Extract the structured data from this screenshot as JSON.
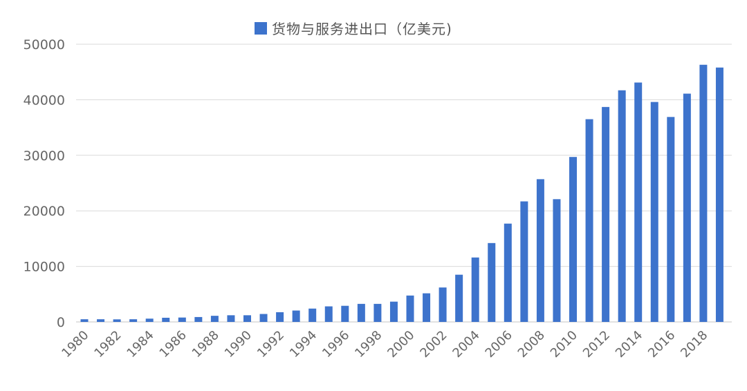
{
  "colors": {
    "bar": "#3D73CC",
    "grid": "#D9D9D9",
    "text": "#666666"
  },
  "chart_data": {
    "type": "bar",
    "title": "",
    "legend": [
      "货物与服务进出口（亿美元)"
    ],
    "legend_label": "货物与服务进出口（亿美元)",
    "legend_position": "top",
    "xlabel": "",
    "ylabel": "",
    "ylim": [
      0,
      50000
    ],
    "yticks": [
      "0",
      "10000",
      "20000",
      "30000",
      "40000",
      "50000"
    ],
    "grid": true,
    "categories": [
      "1980",
      "1981",
      "1982",
      "1983",
      "1984",
      "1985",
      "1986",
      "1987",
      "1988",
      "1989",
      "1990",
      "1991",
      "1992",
      "1993",
      "1994",
      "1995",
      "1996",
      "1997",
      "1998",
      "1999",
      "2000",
      "2001",
      "2002",
      "2003",
      "2004",
      "2005",
      "2006",
      "2007",
      "2008",
      "2009",
      "2010",
      "2011",
      "2012",
      "2013",
      "2014",
      "2015",
      "2016",
      "2017",
      "2018",
      "2019"
    ],
    "xtick_labels": [
      "1980",
      "1982",
      "1984",
      "1986",
      "1988",
      "1990",
      "1992",
      "1994",
      "1996",
      "1998",
      "2000",
      "2002",
      "2004",
      "2006",
      "2008",
      "2010",
      "2012",
      "2014",
      "2016",
      "2018"
    ],
    "series": [
      {
        "name": "货物与服务进出口（亿美元)",
        "values": [
          480,
          480,
          460,
          480,
          590,
          750,
          790,
          880,
          1100,
          1200,
          1200,
          1430,
          1750,
          2050,
          2400,
          2800,
          2900,
          3250,
          3250,
          3650,
          4750,
          5150,
          6200,
          8500,
          11600,
          14200,
          17700,
          21700,
          25700,
          22100,
          29700,
          36500,
          38700,
          41700,
          43100,
          39600,
          36900,
          41100,
          46300,
          45800
        ]
      }
    ]
  }
}
